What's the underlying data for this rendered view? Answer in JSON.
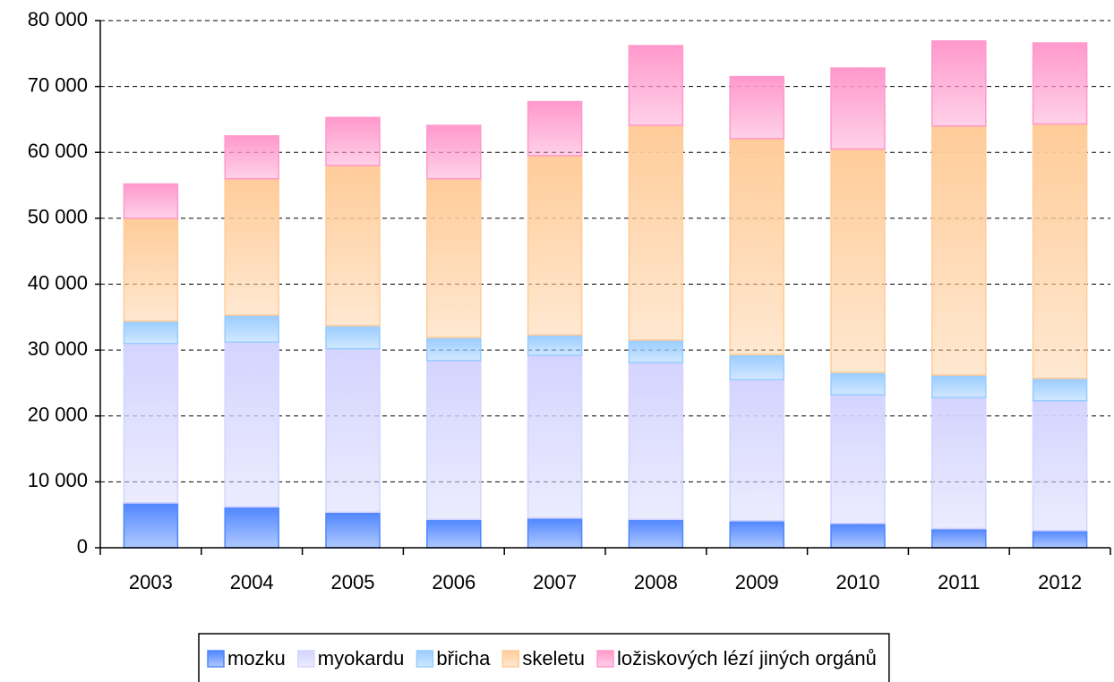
{
  "chart_data": {
    "type": "stacked_bar",
    "categories": [
      "2003",
      "2004",
      "2005",
      "2006",
      "2007",
      "2008",
      "2009",
      "2010",
      "2011",
      "2012"
    ],
    "series": [
      {
        "name": "mozku",
        "color": "#4f86ff",
        "values": [
          6800,
          6200,
          5400,
          4300,
          4500,
          4300,
          4100,
          3700,
          2900,
          2600
        ]
      },
      {
        "name": "myokardu",
        "color": "#d4d4ff",
        "values": [
          24200,
          25000,
          24800,
          24100,
          24700,
          23800,
          21400,
          19500,
          19900,
          19700
        ]
      },
      {
        "name": "břicha",
        "color": "#99ccff",
        "values": [
          3400,
          4100,
          3500,
          3500,
          3100,
          3400,
          3800,
          3400,
          3400,
          3400
        ]
      },
      {
        "name": "skeletu",
        "color": "#ffcc99",
        "values": [
          15600,
          20700,
          24300,
          24100,
          27200,
          32600,
          32800,
          33900,
          37800,
          38600
        ]
      },
      {
        "name": "ložiskových lézí jiných orgánů",
        "color": "#ff99cc",
        "values": [
          5200,
          6500,
          7300,
          8100,
          8200,
          12100,
          9400,
          12300,
          12900,
          12300
        ]
      }
    ],
    "ylim": [
      0,
      80000
    ],
    "yticks": [
      0,
      {
        "value": 10000,
        "label": "10 000"
      },
      {
        "value": 20000,
        "label": "20 000"
      },
      {
        "value": 30000,
        "label": "30 000"
      },
      {
        "value": 40000,
        "label": "40 000"
      },
      {
        "value": 50000,
        "label": "50 000"
      },
      {
        "value": 60000,
        "label": "60 000"
      },
      {
        "value": 70000,
        "label": "70 000"
      },
      {
        "value": 80000,
        "label": "80 000"
      }
    ],
    "grid": true,
    "legend": "bottom"
  }
}
